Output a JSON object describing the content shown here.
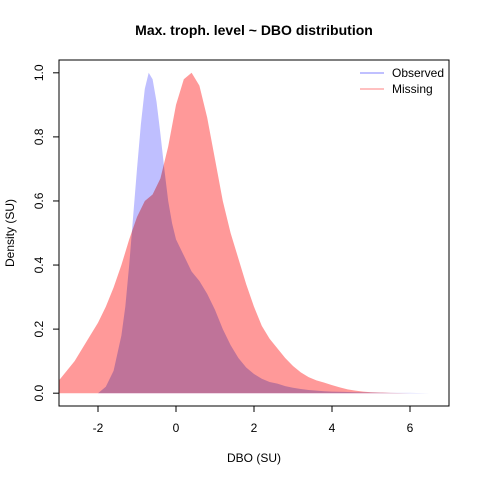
{
  "chart_data": {
    "type": "area",
    "title": "Max. troph. level ~ DBO distribution",
    "xlabel": "DBO (SU)",
    "ylabel": "Density (SU)",
    "xlim": [
      -3,
      7
    ],
    "ylim": [
      0,
      1.05
    ],
    "xticks": [
      -2,
      0,
      2,
      4,
      6
    ],
    "xtick_labels": [
      "-2",
      "0",
      "2",
      "4",
      "6"
    ],
    "yticks": [
      0.0,
      0.2,
      0.4,
      0.6,
      0.8,
      1.0
    ],
    "ytick_labels": [
      "0.0",
      "0.2",
      "0.4",
      "0.6",
      "0.8",
      "1.0"
    ],
    "grid": false,
    "legend_position": "top-right",
    "series": [
      {
        "name": "Observed",
        "color": "#8080ff",
        "x": [
          -2.0,
          -1.8,
          -1.6,
          -1.4,
          -1.3,
          -1.2,
          -1.1,
          -1.0,
          -0.9,
          -0.8,
          -0.7,
          -0.6,
          -0.5,
          -0.4,
          -0.3,
          -0.2,
          -0.1,
          0.0,
          0.2,
          0.4,
          0.6,
          0.8,
          1.0,
          1.2,
          1.4,
          1.6,
          1.8,
          2.0,
          2.2,
          2.4,
          2.6,
          2.8,
          3.0,
          3.2,
          3.4,
          3.6,
          3.8,
          4.0,
          4.3,
          4.6,
          5.0,
          5.5,
          6.0,
          6.5
        ],
        "y": [
          0.0,
          0.02,
          0.07,
          0.18,
          0.27,
          0.4,
          0.55,
          0.7,
          0.84,
          0.95,
          1.0,
          0.98,
          0.91,
          0.81,
          0.7,
          0.6,
          0.53,
          0.48,
          0.43,
          0.38,
          0.35,
          0.31,
          0.26,
          0.2,
          0.15,
          0.11,
          0.08,
          0.06,
          0.045,
          0.035,
          0.03,
          0.022,
          0.017,
          0.013,
          0.01,
          0.008,
          0.006,
          0.005,
          0.004,
          0.003,
          0.002,
          0.001,
          0.001,
          0.0
        ]
      },
      {
        "name": "Missing",
        "color": "#ff8080",
        "x": [
          -3.0,
          -2.6,
          -2.2,
          -2.0,
          -1.8,
          -1.6,
          -1.4,
          -1.2,
          -1.0,
          -0.8,
          -0.6,
          -0.4,
          -0.2,
          0.0,
          0.2,
          0.4,
          0.6,
          0.8,
          1.0,
          1.2,
          1.4,
          1.6,
          1.8,
          2.0,
          2.2,
          2.4,
          2.6,
          2.8,
          3.0,
          3.2,
          3.4,
          3.6,
          3.8,
          4.0,
          4.2,
          4.4,
          4.6,
          4.8,
          5.0,
          5.5,
          6.0
        ],
        "y": [
          0.04,
          0.1,
          0.18,
          0.22,
          0.27,
          0.33,
          0.4,
          0.48,
          0.55,
          0.6,
          0.62,
          0.67,
          0.77,
          0.9,
          0.98,
          1.0,
          0.96,
          0.86,
          0.73,
          0.6,
          0.5,
          0.42,
          0.34,
          0.27,
          0.21,
          0.17,
          0.14,
          0.11,
          0.085,
          0.065,
          0.05,
          0.04,
          0.033,
          0.025,
          0.018,
          0.012,
          0.008,
          0.005,
          0.003,
          0.001,
          0.0
        ]
      }
    ]
  }
}
